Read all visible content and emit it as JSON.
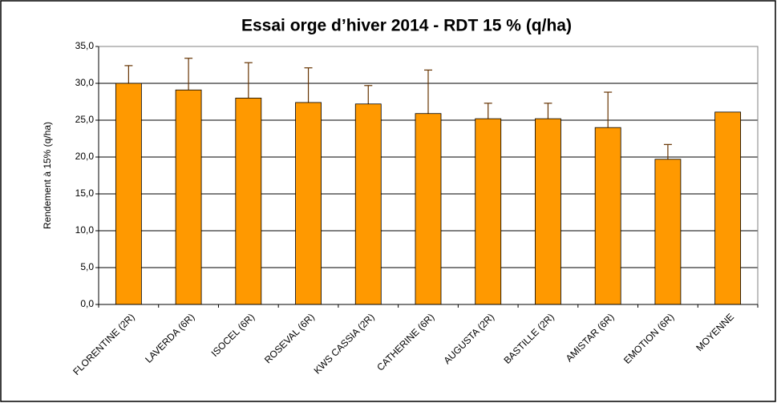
{
  "chart_data": {
    "type": "bar",
    "title": "Essai orge d’hiver 2014 - RDT 15 % (q/ha)",
    "ylabel": "Rendement à 15% (q/ha)",
    "categories": [
      "FLORENTINE (2R)",
      "LAVERDA (6R)",
      "ISOCEL (6R)",
      "ROSEVAL (6R)",
      "KWS CASSIA (2R)",
      "CATHERINE (6R)",
      "AUGUSTA (2R)",
      "BASTILLE (2R)",
      "AMISTAR (6R)",
      "EMOTION (6R)",
      "MOYENNE"
    ],
    "values": [
      30.0,
      29.1,
      28.0,
      27.4,
      27.2,
      25.9,
      25.2,
      25.2,
      24.0,
      19.7,
      26.1
    ],
    "errors": [
      2.4,
      4.3,
      4.8,
      4.7,
      2.5,
      5.9,
      2.1,
      2.1,
      4.8,
      2.0,
      null
    ],
    "color": "#ff9900",
    "error_color": "#663300",
    "ylim": [
      0,
      35
    ],
    "yticks": [
      {
        "value": 0,
        "label": "0,0"
      },
      {
        "value": 5,
        "label": "5,0"
      },
      {
        "value": 10,
        "label": "10,0"
      },
      {
        "value": 15,
        "label": "15,0"
      },
      {
        "value": 20,
        "label": "20,0"
      },
      {
        "value": 25,
        "label": "25,0"
      },
      {
        "value": 30,
        "label": "30,0"
      },
      {
        "value": 35,
        "label": "35,0"
      }
    ],
    "grid": true
  }
}
